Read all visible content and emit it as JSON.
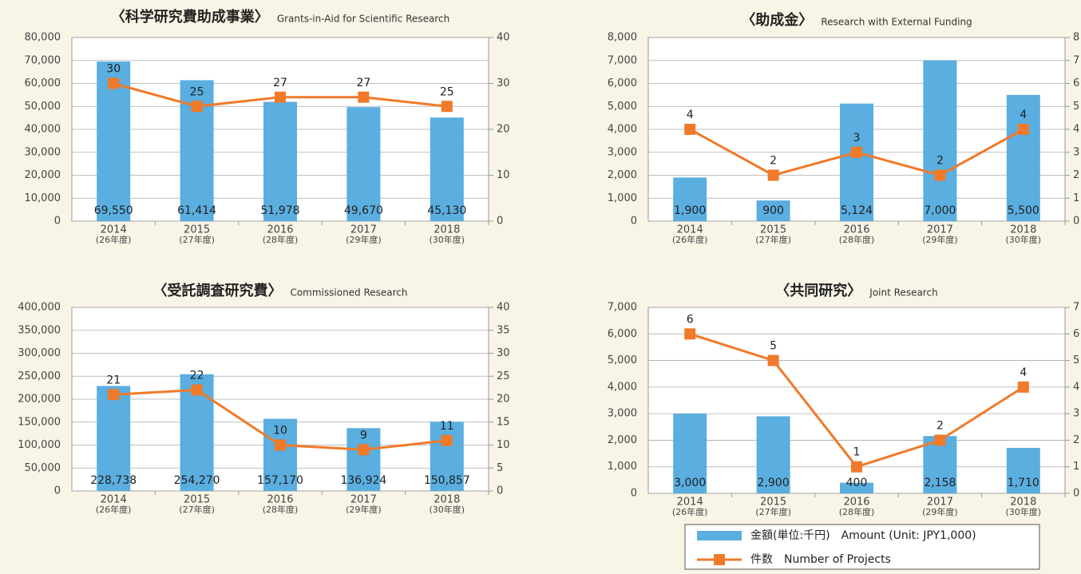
{
  "chart_data": [
    {
      "type": "bar_line",
      "title": "〈科学研究費助成事業〉",
      "subtitle": "Grants-in-Aid for Scientific Research",
      "categories": [
        "2014",
        "2015",
        "2016",
        "2017",
        "2018"
      ],
      "fiscal_labels": [
        "(26年度)",
        "(27年度)",
        "(28年度)",
        "(29年度)",
        "(30年度)"
      ],
      "ylim": [
        0,
        80000
      ],
      "yticks": [
        0,
        {
          "value": 10000,
          "label": "10,000"
        },
        {
          "value": 20000,
          "label": "20,000"
        },
        {
          "value": 30000,
          "label": "30,000"
        },
        {
          "value": 40000,
          "label": "40,000"
        },
        {
          "value": 50000,
          "label": "50,000"
        },
        {
          "value": 60000,
          "label": "60,000"
        },
        {
          "value": 70000,
          "label": "70,000"
        },
        {
          "value": 80000,
          "label": "80,000"
        }
      ],
      "y2lim": [
        0,
        40
      ],
      "y2ticks": [
        0,
        10,
        20,
        30,
        40
      ],
      "grid": true,
      "series": [
        {
          "type": "bar",
          "color": "#5aaee0",
          "values": [
            69550,
            61414,
            51978,
            49670,
            45130
          ],
          "value_labels": [
            "69,550",
            "61,414",
            "51,978",
            "49,670",
            "45,130"
          ]
        },
        {
          "type": "line",
          "axis": "y2",
          "color": "#f07a2a",
          "values": [
            30,
            25,
            27,
            27,
            25
          ]
        }
      ]
    },
    {
      "type": "bar_line",
      "title": "〈助成金〉",
      "subtitle": "Research with External Funding",
      "categories": [
        "2014",
        "2015",
        "2016",
        "2017",
        "2018"
      ],
      "fiscal_labels": [
        "(26年度)",
        "(27年度)",
        "(28年度)",
        "(29年度)",
        "(30年度)"
      ],
      "ylim": [
        0,
        8000
      ],
      "yticks": [
        0,
        {
          "value": 1000,
          "label": "1,000"
        },
        {
          "value": 2000,
          "label": "2,000"
        },
        {
          "value": 3000,
          "label": "3,000"
        },
        {
          "value": 4000,
          "label": "4,000"
        },
        {
          "value": 5000,
          "label": "5,000"
        },
        {
          "value": 6000,
          "label": "6,000"
        },
        {
          "value": 7000,
          "label": "7,000"
        },
        {
          "value": 8000,
          "label": "8,000"
        }
      ],
      "y2lim": [
        0,
        8
      ],
      "y2ticks": [
        0,
        1,
        2,
        3,
        4,
        5,
        6,
        7,
        8
      ],
      "grid": true,
      "series": [
        {
          "type": "bar",
          "color": "#5aaee0",
          "values": [
            1900,
            900,
            5124,
            7000,
            5500
          ],
          "value_labels": [
            "1,900",
            "900",
            "5,124",
            "7,000",
            "5,500"
          ]
        },
        {
          "type": "line",
          "axis": "y2",
          "color": "#f07a2a",
          "values": [
            4,
            2,
            3,
            2,
            4
          ]
        }
      ]
    },
    {
      "type": "bar_line",
      "title": "〈受託調査研究費〉",
      "subtitle": "Commissioned Research",
      "categories": [
        "2014",
        "2015",
        "2016",
        "2017",
        "2018"
      ],
      "fiscal_labels": [
        "(26年度)",
        "(27年度)",
        "(28年度)",
        "(29年度)",
        "(30年度)"
      ],
      "ylim": [
        0,
        400000
      ],
      "yticks": [
        0,
        {
          "value": 50000,
          "label": "50,000"
        },
        {
          "value": 100000,
          "label": "100,000"
        },
        {
          "value": 150000,
          "label": "150,000"
        },
        {
          "value": 200000,
          "label": "200,000"
        },
        {
          "value": 250000,
          "label": "250,000"
        },
        {
          "value": 300000,
          "label": "300,000"
        },
        {
          "value": 350000,
          "label": "350,000"
        },
        {
          "value": 400000,
          "label": "400,000"
        }
      ],
      "y2lim": [
        0,
        40
      ],
      "y2ticks": [
        0,
        5,
        10,
        15,
        20,
        25,
        30,
        35,
        40
      ],
      "grid": true,
      "series": [
        {
          "type": "bar",
          "color": "#5aaee0",
          "values": [
            228738,
            254270,
            157170,
            136924,
            150857
          ],
          "value_labels": [
            "228,738",
            "254,270",
            "157,170",
            "136,924",
            "150,857"
          ]
        },
        {
          "type": "line",
          "axis": "y2",
          "color": "#f07a2a",
          "values": [
            21,
            22,
            10,
            9,
            11
          ]
        }
      ]
    },
    {
      "type": "bar_line",
      "title": "〈共同研究〉",
      "subtitle": "Joint Research",
      "categories": [
        "2014",
        "2015",
        "2016",
        "2017",
        "2018"
      ],
      "fiscal_labels": [
        "(26年度)",
        "(27年度)",
        "(28年度)",
        "(29年度)",
        "(30年度)"
      ],
      "ylim": [
        0,
        7000
      ],
      "yticks": [
        0,
        {
          "value": 1000,
          "label": "1,000"
        },
        {
          "value": 2000,
          "label": "2,000"
        },
        {
          "value": 3000,
          "label": "3,000"
        },
        {
          "value": 4000,
          "label": "4,000"
        },
        {
          "value": 5000,
          "label": "5,000"
        },
        {
          "value": 6000,
          "label": "6,000"
        },
        {
          "value": 7000,
          "label": "7,000"
        }
      ],
      "y2lim": [
        0,
        7
      ],
      "y2ticks": [
        0,
        1,
        2,
        3,
        4,
        5,
        6,
        7
      ],
      "grid": true,
      "series": [
        {
          "type": "bar",
          "color": "#5aaee0",
          "values": [
            3000,
            2900,
            400,
            2158,
            1710
          ],
          "value_labels": [
            "3,000",
            "2,900",
            "400",
            "2,158",
            "1,710"
          ]
        },
        {
          "type": "line",
          "axis": "y2",
          "color": "#f07a2a",
          "values": [
            6,
            5,
            1,
            2,
            4
          ]
        }
      ]
    }
  ],
  "legend": [
    {
      "type": "bar",
      "color": "#5aaee0",
      "label": "金額(単位:千円)　Amount (Unit: JPY1,000)"
    },
    {
      "type": "line",
      "color": "#f07a2a",
      "label": "件数　Number of Projects"
    }
  ]
}
